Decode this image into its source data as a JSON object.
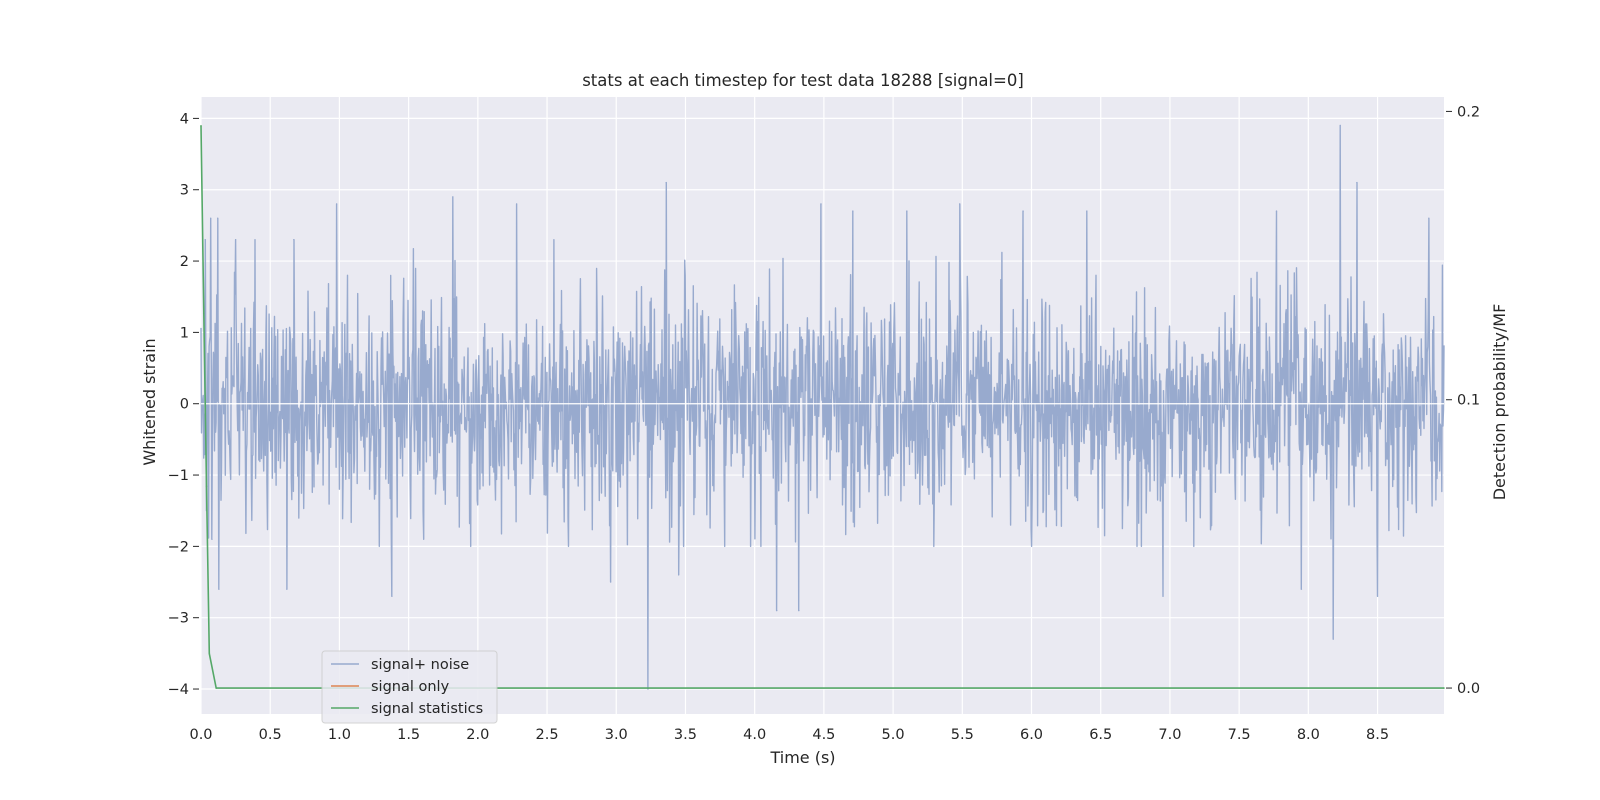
{
  "chart_data": {
    "type": "line",
    "title": "stats at each timestep for test data 18288 [signal=0]",
    "xlabel": "Time (s)",
    "ylabel": "Whitened strain",
    "y2label": "Detection probability/MF",
    "xlim": [
      0.0,
      8.98
    ],
    "ylim": [
      -4.35,
      4.3
    ],
    "y2lim": [
      -0.009,
      0.205
    ],
    "x_ticks": [
      "0.0",
      "0.5",
      "1.0",
      "1.5",
      "2.0",
      "2.5",
      "3.0",
      "3.5",
      "4.0",
      "4.5",
      "5.0",
      "5.5",
      "6.0",
      "6.5",
      "7.0",
      "7.5",
      "8.0",
      "8.5"
    ],
    "y_ticks": [
      "4",
      "3",
      "2",
      "1",
      "0",
      "−1",
      "−2",
      "−3",
      "−4"
    ],
    "y2_ticks": [
      "0.2",
      "0.1",
      "0.0"
    ],
    "grid": true,
    "legend_position": "lower-left",
    "colors": {
      "plot_bg": "#eaeaf2",
      "grid": "#ffffff",
      "noise": "#98aace",
      "signal": "#dd8452",
      "stats": "#55a868"
    },
    "series": [
      {
        "name": "signal+ noise",
        "axis": "left",
        "sampling": "dense noise, approx 0.004 s spacing",
        "x_start": 0.0,
        "x_end": 8.98,
        "typical_range": [
          -1.6,
          1.9
        ],
        "spikes": [
          {
            "x": 0.03,
            "y": 2.3
          },
          {
            "x": 0.08,
            "y": -1.9
          },
          {
            "x": 0.07,
            "y": 2.6
          },
          {
            "x": 0.12,
            "y": 2.6
          },
          {
            "x": 0.13,
            "y": -2.6
          },
          {
            "x": 0.25,
            "y": 2.3
          },
          {
            "x": 0.62,
            "y": -2.6
          },
          {
            "x": 0.67,
            "y": 2.3
          },
          {
            "x": 0.98,
            "y": 2.8
          },
          {
            "x": 1.38,
            "y": -2.7
          },
          {
            "x": 1.82,
            "y": 2.9
          },
          {
            "x": 2.28,
            "y": 2.8
          },
          {
            "x": 2.96,
            "y": -2.5
          },
          {
            "x": 3.23,
            "y": -4.0
          },
          {
            "x": 3.36,
            "y": 3.1
          },
          {
            "x": 3.45,
            "y": -2.4
          },
          {
            "x": 4.16,
            "y": -2.9
          },
          {
            "x": 4.32,
            "y": -2.9
          },
          {
            "x": 4.48,
            "y": 2.8
          },
          {
            "x": 4.71,
            "y": 2.7
          },
          {
            "x": 5.1,
            "y": 2.7
          },
          {
            "x": 5.48,
            "y": 2.8
          },
          {
            "x": 5.94,
            "y": 2.7
          },
          {
            "x": 6.4,
            "y": 2.7
          },
          {
            "x": 6.95,
            "y": -2.7
          },
          {
            "x": 7.77,
            "y": 2.7
          },
          {
            "x": 7.95,
            "y": -2.6
          },
          {
            "x": 8.18,
            "y": -3.3
          },
          {
            "x": 8.23,
            "y": 3.9
          },
          {
            "x": 8.35,
            "y": 3.1
          },
          {
            "x": 8.5,
            "y": -2.7
          },
          {
            "x": 8.87,
            "y": 2.6
          }
        ]
      },
      {
        "name": "signal only",
        "axis": "left",
        "x": [
          0.0,
          8.98
        ],
        "y": [
          0.0,
          0.0
        ]
      },
      {
        "name": "signal statistics",
        "axis": "right",
        "x": [
          0.0,
          0.02,
          0.04,
          0.06,
          0.11,
          8.98
        ],
        "y": [
          0.195,
          0.13,
          0.07,
          0.012,
          0.0,
          0.0
        ]
      }
    ]
  }
}
